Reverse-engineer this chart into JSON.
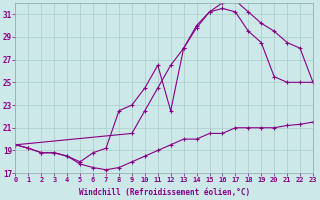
{
  "xlabel": "Windchill (Refroidissement éolien,°C)",
  "bg_color": "#cce8e8",
  "line_color": "#880088",
  "grid_color": "#aacccc",
  "xlim": [
    0,
    23
  ],
  "ylim": [
    17,
    32
  ],
  "xticks": [
    0,
    1,
    2,
    3,
    4,
    5,
    6,
    7,
    8,
    9,
    10,
    11,
    12,
    13,
    14,
    15,
    16,
    17,
    18,
    19,
    20,
    21,
    22,
    23
  ],
  "yticks": [
    17,
    19,
    21,
    23,
    25,
    27,
    29,
    31
  ],
  "curve_bottom_x": [
    0,
    1,
    2,
    3,
    4,
    5,
    6,
    7,
    8,
    9,
    10,
    11,
    12,
    13,
    14,
    15,
    16,
    17,
    18,
    19,
    20,
    21,
    22,
    23
  ],
  "curve_bottom_y": [
    19.5,
    19.2,
    18.8,
    18.8,
    18.5,
    17.8,
    17.5,
    17.3,
    17.5,
    18.0,
    18.5,
    19.0,
    19.5,
    20.0,
    20.0,
    20.5,
    20.5,
    21.0,
    21.0,
    21.0,
    21.0,
    21.2,
    21.3,
    21.5
  ],
  "curve_mid_x": [
    0,
    1,
    2,
    3,
    4,
    5,
    6,
    7,
    8,
    9,
    10,
    11,
    12,
    13,
    14,
    15,
    16,
    17,
    18,
    19,
    20,
    21,
    22,
    23
  ],
  "curve_mid_y": [
    19.5,
    19.2,
    18.8,
    18.8,
    18.5,
    18.0,
    18.8,
    19.2,
    22.5,
    23.0,
    24.5,
    26.5,
    22.5,
    28.0,
    30.0,
    31.2,
    31.5,
    31.2,
    29.5,
    28.5,
    25.5,
    25.0,
    25.0,
    25.0
  ],
  "curve_top_x": [
    0,
    9,
    10,
    11,
    12,
    13,
    14,
    15,
    16,
    17,
    18,
    19,
    20,
    21,
    22,
    23
  ],
  "curve_top_y": [
    19.5,
    20.5,
    22.5,
    24.5,
    26.5,
    28.0,
    29.8,
    31.2,
    32.0,
    32.2,
    31.2,
    30.2,
    29.5,
    28.5,
    28.0,
    25.0
  ]
}
